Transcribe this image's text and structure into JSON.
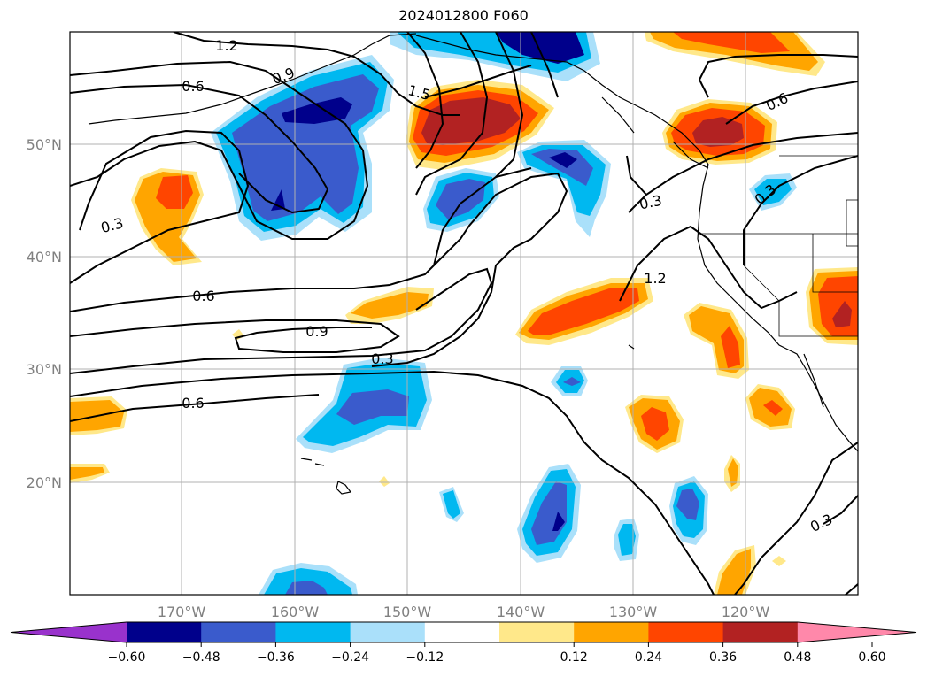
{
  "title": "2024012800 F060",
  "lon_labels": [
    "170°W",
    "160°W",
    "150°W",
    "140°W",
    "130°W",
    "120°W"
  ],
  "lat_labels": [
    "50°N",
    "40°N",
    "30°N",
    "20°N"
  ],
  "contour_labels": [
    "1.2",
    "0.6",
    "0.9",
    "1.5",
    "0.6",
    "0.3",
    "0.3",
    "0.6",
    "1.2",
    "0.9",
    "0.3",
    "0.6",
    "0.3",
    "0.3"
  ],
  "colorbar": {
    "ticks": [
      "−0.60",
      "−0.48",
      "−0.36",
      "−0.24",
      "−0.12",
      "0.12",
      "0.24",
      "0.36",
      "0.48",
      "0.60"
    ],
    "colors": [
      "#9932cc",
      "#00008b",
      "#3a5bcc",
      "#00b8f0",
      "#aae0fa",
      "#ffffff",
      "#ffe88a",
      "#ffa500",
      "#ff4500",
      "#b22222",
      "#ff88aa"
    ]
  },
  "colors": {
    "grid": "#b0b0b0",
    "coast": "#000000",
    "contour": "#000000"
  }
}
